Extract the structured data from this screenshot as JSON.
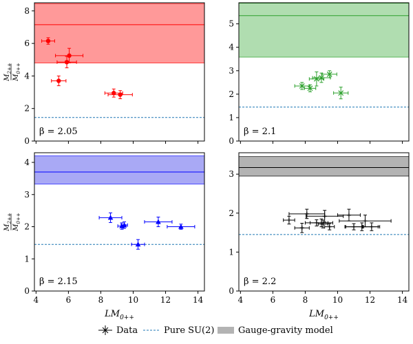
{
  "chart_data": [
    {
      "type": "scatter",
      "beta_label": "β = 2.05",
      "color": "#ff0000",
      "fill_color": "#ff9999",
      "marker": "circle",
      "xlim": [
        3.9,
        14.4
      ],
      "ylim": [
        0,
        8.5
      ],
      "yticks": [
        "0",
        "2",
        "4",
        "6",
        "8"
      ],
      "ytick_values": [
        0,
        2,
        4,
        6,
        8
      ],
      "xticks": [
        "4",
        "6",
        "8",
        "10",
        "12",
        "14"
      ],
      "xtick_values": [
        4,
        6,
        8,
        10,
        12,
        14
      ],
      "band": {
        "center": 7.15,
        "low": 4.8,
        "high": 8.45
      },
      "pure_su2": 1.45,
      "points": [
        {
          "x": 4.75,
          "y": 6.15,
          "xerr": 0.4,
          "yerr": 0.2
        },
        {
          "x": 5.4,
          "y": 3.7,
          "xerr": 0.45,
          "yerr": 0.3
        },
        {
          "x": 6.05,
          "y": 5.25,
          "xerr": 0.85,
          "yerr": 0.45
        },
        {
          "x": 5.9,
          "y": 4.85,
          "xerr": 0.6,
          "yerr": 0.35
        },
        {
          "x": 8.8,
          "y": 2.95,
          "xerr": 0.55,
          "yerr": 0.25
        },
        {
          "x": 9.2,
          "y": 2.85,
          "xerr": 0.75,
          "yerr": 0.25
        }
      ],
      "xlabel": "",
      "ylabel": "M2++ / M0++",
      "show_xticklabels": false,
      "show_ylabel": true
    },
    {
      "type": "scatter",
      "beta_label": "β = 2.1",
      "color": "#2ca02c",
      "fill_color": "#b0ddb0",
      "marker": "x",
      "xlim": [
        3.9,
        14.4
      ],
      "ylim": [
        0,
        5.9
      ],
      "yticks": [
        "0",
        "1",
        "2",
        "3",
        "4",
        "5"
      ],
      "ytick_values": [
        0,
        1,
        2,
        3,
        4,
        5
      ],
      "xticks": [
        "4",
        "6",
        "8",
        "10",
        "12",
        "14"
      ],
      "xtick_values": [
        4,
        6,
        8,
        10,
        12,
        14
      ],
      "band": {
        "center": 5.35,
        "low": 3.58,
        "high": 5.88
      },
      "pure_su2": 1.45,
      "points": [
        {
          "x": 7.8,
          "y": 2.35,
          "xerr": 0.45,
          "yerr": 0.15
        },
        {
          "x": 8.3,
          "y": 2.25,
          "xerr": 0.35,
          "yerr": 0.15
        },
        {
          "x": 8.7,
          "y": 2.65,
          "xerr": 0.45,
          "yerr": 0.3
        },
        {
          "x": 9.0,
          "y": 2.7,
          "xerr": 0.55,
          "yerr": 0.2
        },
        {
          "x": 9.5,
          "y": 2.85,
          "xerr": 0.45,
          "yerr": 0.15
        },
        {
          "x": 10.2,
          "y": 2.05,
          "xerr": 0.45,
          "yerr": 0.25
        }
      ],
      "xlabel": "",
      "ylabel": "",
      "show_xticklabels": false,
      "show_ylabel": false
    },
    {
      "type": "scatter",
      "beta_label": "β = 2.15",
      "color": "#0000ff",
      "fill_color": "#a9a9f5",
      "marker": "triangle",
      "xlim": [
        3.9,
        14.4
      ],
      "ylim": [
        0,
        4.3
      ],
      "yticks": [
        "0",
        "1",
        "2",
        "3",
        "4"
      ],
      "ytick_values": [
        0,
        1,
        2,
        3,
        4
      ],
      "xticks": [
        "4",
        "6",
        "8",
        "10",
        "12",
        "14"
      ],
      "xtick_values": [
        4,
        6,
        8,
        10,
        12,
        14
      ],
      "band": {
        "center": 3.7,
        "low": 3.33,
        "high": 4.2
      },
      "pure_su2": 1.45,
      "points": [
        {
          "x": 8.6,
          "y": 2.28,
          "xerr": 0.7,
          "yerr": 0.15
        },
        {
          "x": 9.3,
          "y": 2.02,
          "xerr": 0.25,
          "yerr": 0.1
        },
        {
          "x": 9.45,
          "y": 2.05,
          "xerr": 0.2,
          "yerr": 0.1
        },
        {
          "x": 10.3,
          "y": 1.45,
          "xerr": 0.4,
          "yerr": 0.15
        },
        {
          "x": 11.55,
          "y": 2.15,
          "xerr": 0.85,
          "yerr": 0.15
        },
        {
          "x": 12.95,
          "y": 2.0,
          "xerr": 0.85,
          "yerr": 0.08
        }
      ],
      "xlabel": "LM0++",
      "ylabel": "M2++ / M0++",
      "show_xticklabels": true,
      "show_ylabel": true
    },
    {
      "type": "scatter",
      "beta_label": "β = 2.2",
      "color": "#000000",
      "fill_color": "#b3b3b3",
      "marker": "plus",
      "xlim": [
        3.9,
        14.4
      ],
      "ylim": [
        0,
        3.55
      ],
      "yticks": [
        "0",
        "1",
        "2",
        "3"
      ],
      "ytick_values": [
        0,
        1,
        2,
        3
      ],
      "xticks": [
        "4",
        "6",
        "8",
        "10",
        "12",
        "14"
      ],
      "xtick_values": [
        4,
        6,
        8,
        10,
        12,
        14
      ],
      "band": {
        "center": 3.17,
        "low": 2.95,
        "high": 3.45
      },
      "pure_su2": 1.45,
      "points": [
        {
          "x": 7.0,
          "y": 1.82,
          "xerr": 0.35,
          "yerr": 0.1
        },
        {
          "x": 7.8,
          "y": 1.62,
          "xerr": 0.45,
          "yerr": 0.12
        },
        {
          "x": 8.1,
          "y": 1.98,
          "xerr": 1.1,
          "yerr": 0.12
        },
        {
          "x": 8.7,
          "y": 1.75,
          "xerr": 0.7,
          "yerr": 0.08
        },
        {
          "x": 9.0,
          "y": 1.75,
          "xerr": 0.7,
          "yerr": 0.1
        },
        {
          "x": 9.1,
          "y": 1.72,
          "xerr": 0.3,
          "yerr": 0.1
        },
        {
          "x": 9.2,
          "y": 1.92,
          "xerr": 1.15,
          "yerr": 0.15
        },
        {
          "x": 9.5,
          "y": 1.65,
          "xerr": 0.3,
          "yerr": 0.08
        },
        {
          "x": 10.7,
          "y": 1.95,
          "xerr": 0.7,
          "yerr": 0.15
        },
        {
          "x": 11.0,
          "y": 1.65,
          "xerr": 0.55,
          "yerr": 0.08
        },
        {
          "x": 11.5,
          "y": 1.65,
          "xerr": 1.0,
          "yerr": 0.1
        },
        {
          "x": 11.7,
          "y": 1.8,
          "xerr": 1.6,
          "yerr": 0.15
        },
        {
          "x": 12.1,
          "y": 1.65,
          "xerr": 0.5,
          "yerr": 0.1
        }
      ],
      "xlabel": "LM0++",
      "ylabel": "",
      "show_xticklabels": true,
      "show_ylabel": false
    }
  ],
  "legend": {
    "items": [
      {
        "label": "Data",
        "kind": "errorbar"
      },
      {
        "label": "Pure SU(2)",
        "kind": "dashed"
      },
      {
        "label": "Gauge-gravity model",
        "kind": "patch"
      }
    ],
    "dashed_color": "#1f77b4",
    "patch_color": "#b3b3b3"
  }
}
